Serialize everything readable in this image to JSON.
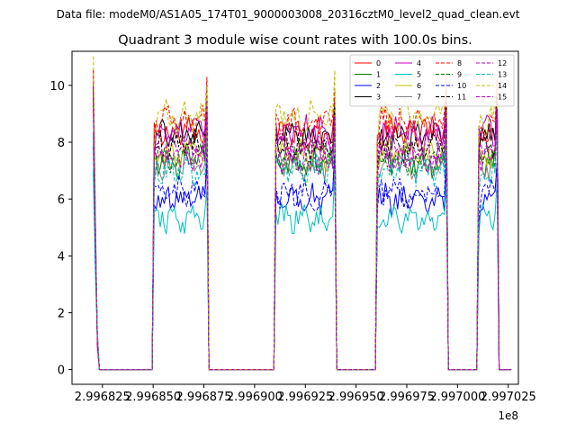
{
  "chart_data": {
    "type": "line",
    "suptitle": "Data file: modeM0/AS1A05_174T01_9000003008_20316cztM0_level2_quad_clean.evt",
    "title": "Quadrant 3 module wise count rates with 100.0s bins.",
    "xlabel": "",
    "ylabel": "",
    "x_offset_label": "1e8",
    "xlim": [
      2.99681,
      2.99703
    ],
    "ylim": [
      -0.52,
      11.2
    ],
    "x_ticks": [
      2.996825,
      2.99685,
      2.996875,
      2.9969,
      2.996925,
      2.99695,
      2.996975,
      2.997,
      2.997025
    ],
    "x_tick_labels": [
      "2.996825",
      "2.996850",
      "2.996875",
      "2.996900",
      "2.996925",
      "2.996950",
      "2.996975",
      "2.997000",
      "2.997025"
    ],
    "y_ticks": [
      0,
      2,
      4,
      6,
      8,
      10
    ],
    "y_tick_labels": [
      "0",
      "2",
      "4",
      "6",
      "8",
      "10"
    ],
    "grid": false,
    "legend_position": "top-right",
    "legend_columns": 4,
    "x_range": [
      2.9968205,
      2.9970265
    ],
    "x_step": 1e-06,
    "on_intervals": [
      [
        2.99685,
        2.9968765
      ],
      [
        2.99691,
        2.99694
      ],
      [
        2.99696,
        2.9969945
      ],
      [
        2.99701,
        2.99702
      ]
    ],
    "series": [
      {
        "name": "0",
        "color": "#ff0000",
        "dash": "solid",
        "level": 8.3
      },
      {
        "name": "1",
        "color": "#008000",
        "dash": "solid",
        "level": 7.3
      },
      {
        "name": "2",
        "color": "#0000ff",
        "dash": "solid",
        "level": 6.0
      },
      {
        "name": "3",
        "color": "#000000",
        "dash": "solid",
        "level": 8.2
      },
      {
        "name": "4",
        "color": "#c000c0",
        "dash": "solid",
        "level": 8.4
      },
      {
        "name": "5",
        "color": "#00c0c0",
        "dash": "solid",
        "level": 5.3
      },
      {
        "name": "6",
        "color": "#c0c000",
        "dash": "solid",
        "level": 7.6
      },
      {
        "name": "7",
        "color": "#808080",
        "dash": "solid",
        "level": 7.2
      },
      {
        "name": "8",
        "color": "#ff0000",
        "dash": "dashed",
        "level": 8.7
      },
      {
        "name": "9",
        "color": "#008000",
        "dash": "dashed",
        "level": 7.4
      },
      {
        "name": "10",
        "color": "#0000ff",
        "dash": "dashed",
        "level": 6.2
      },
      {
        "name": "11",
        "color": "#000000",
        "dash": "dashed",
        "level": 7.9
      },
      {
        "name": "12",
        "color": "#c000c0",
        "dash": "dashed",
        "level": 7.7
      },
      {
        "name": "13",
        "color": "#00c0c0",
        "dash": "dashed",
        "level": 7.0
      },
      {
        "name": "14",
        "color": "#c0c000",
        "dash": "dashed",
        "level": 8.9
      },
      {
        "name": "15",
        "color": "#c000c0",
        "dash": "dashed",
        "level": 7.5
      }
    ]
  }
}
